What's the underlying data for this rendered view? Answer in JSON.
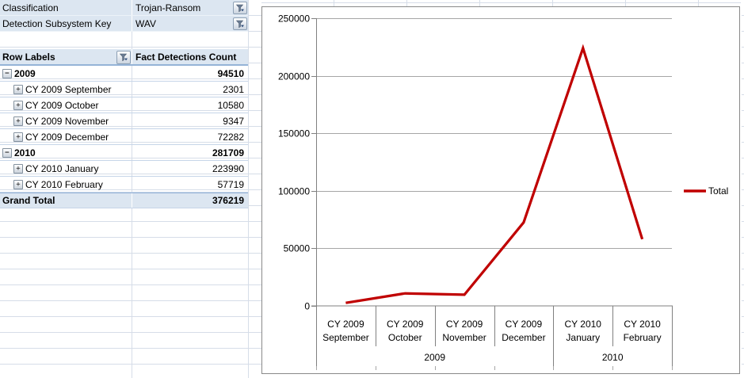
{
  "filters": {
    "rows": [
      {
        "label": "Classification",
        "value": "Trojan-Ransom"
      },
      {
        "label": "Detection Subsystem Key",
        "value": "WAV"
      }
    ]
  },
  "pivot": {
    "columns": [
      "Row Labels",
      "Fact Detections Count"
    ],
    "rows": [
      {
        "label": "2009",
        "value": "94510",
        "level": 0,
        "toggle": "collapse"
      },
      {
        "label": "CY 2009 September",
        "value": "2301",
        "level": 1,
        "toggle": "expand"
      },
      {
        "label": "CY 2009 October",
        "value": "10580",
        "level": 1,
        "toggle": "expand"
      },
      {
        "label": "CY 2009 November",
        "value": "9347",
        "level": 1,
        "toggle": "expand"
      },
      {
        "label": "CY 2009 December",
        "value": "72282",
        "level": 1,
        "toggle": "expand"
      },
      {
        "label": "2010",
        "value": "281709",
        "level": 0,
        "toggle": "collapse"
      },
      {
        "label": "CY 2010 January",
        "value": "223990",
        "level": 1,
        "toggle": "expand"
      },
      {
        "label": "CY 2010 February",
        "value": "57719",
        "level": 1,
        "toggle": "expand"
      }
    ],
    "grand_total": {
      "label": "Grand Total",
      "value": "376219"
    }
  },
  "icons": {
    "collapse_glyph": "−",
    "expand_glyph": "+",
    "filter_icon": "funnel"
  },
  "colors": {
    "series_red": "#C00000",
    "pivot_accent": "#DCE6F1",
    "pivot_border": "#95B3D7",
    "grid_gray": "#A6A6A6",
    "axis_gray": "#808080"
  },
  "chart_data": {
    "type": "line",
    "title": "",
    "xlabel": "",
    "ylabel": "",
    "categories": [
      "CY 2009 September",
      "CY 2009 October",
      "CY 2009 November",
      "CY 2009 December",
      "CY 2010 January",
      "CY 2010 February"
    ],
    "category_groups": [
      {
        "label": "2009",
        "span": 4
      },
      {
        "label": "2010",
        "span": 2
      }
    ],
    "series": [
      {
        "name": "Total",
        "color": "#C00000",
        "values": [
          2301,
          10580,
          9347,
          72282,
          223990,
          57719
        ]
      }
    ],
    "ylim": [
      0,
      250000
    ],
    "yticks": [
      0,
      50000,
      100000,
      150000,
      200000,
      250000
    ],
    "gridlines": "horizontal",
    "legend": {
      "position": "right",
      "entries": [
        "Total"
      ]
    }
  }
}
